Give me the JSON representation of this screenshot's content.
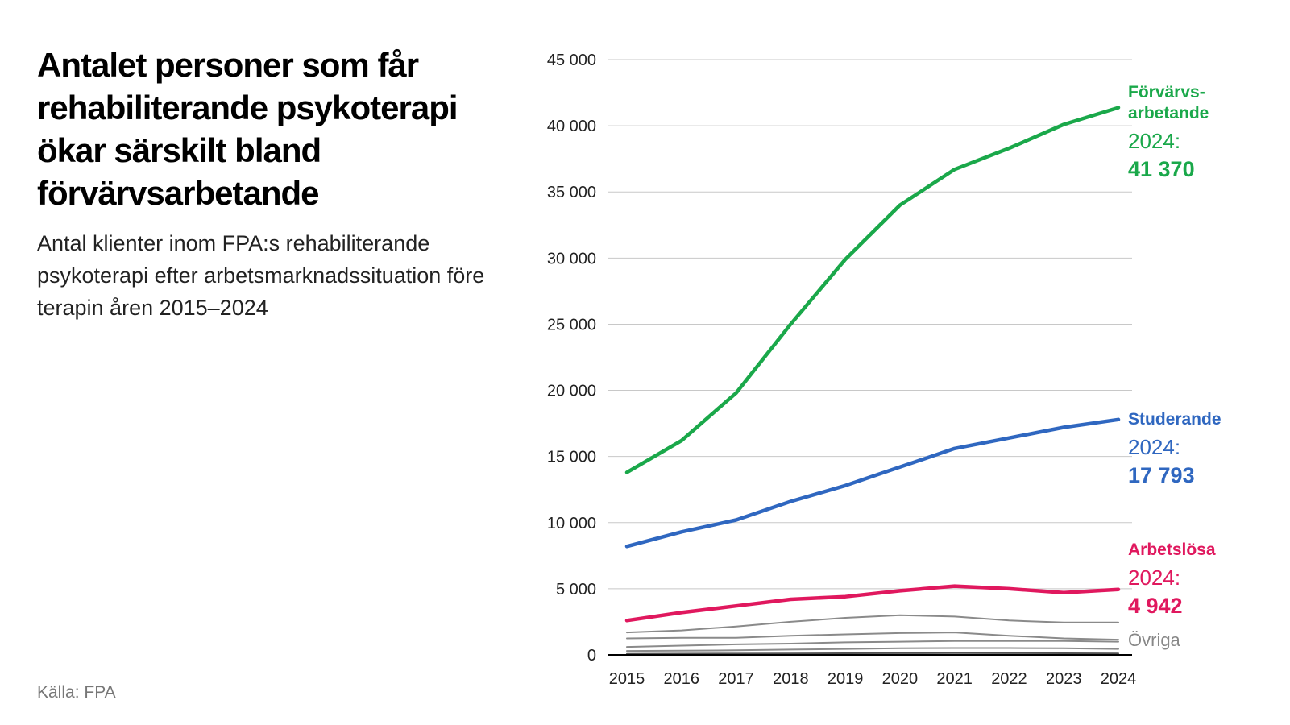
{
  "header": {
    "title": "Antalet personer som får rehabiliterande psykoterapi ökar särskilt bland förvärvsarbetande",
    "subtitle": "Antal klienter inom FPA:s rehabiliterande psykoterapi efter arbetsmarknadssituation före terapin åren 2015–2024"
  },
  "footer": {
    "source": "Källa: FPA"
  },
  "chart_data": {
    "type": "line",
    "title": "Antalet personer som får rehabiliterande psykoterapi ökar särskilt bland förvärvsarbetande",
    "subtitle": "Antal klienter inom FPA:s rehabiliterande psykoterapi efter arbetsmarknadssituation före terapin åren 2015–2024",
    "xlabel": "",
    "ylabel": "",
    "x": [
      "2015",
      "2016",
      "2017",
      "2018",
      "2019",
      "2020",
      "2021",
      "2022",
      "2023",
      "2024"
    ],
    "ylim": [
      0,
      45000
    ],
    "y_ticks": [
      0,
      5000,
      10000,
      15000,
      20000,
      25000,
      30000,
      35000,
      40000,
      45000
    ],
    "y_tick_labels": [
      "0",
      "5 000",
      "10 000",
      "15 000",
      "20 000",
      "25 000",
      "30 000",
      "35 000",
      "40 000",
      "45 000"
    ],
    "grid": true,
    "series": [
      {
        "name": "Förvärvsarbetande",
        "label_lines": [
          "Förvärvs-",
          "arbetande"
        ],
        "color": "#1aa84a",
        "highlight": true,
        "values": [
          13800,
          16200,
          19800,
          25000,
          29900,
          34000,
          36700,
          38300,
          40100,
          41370
        ],
        "end_label_year": "2024:",
        "end_label_value": "41 370"
      },
      {
        "name": "Studerande",
        "label_lines": [
          "Studerande"
        ],
        "color": "#2f67c0",
        "highlight": true,
        "values": [
          8200,
          9300,
          10200,
          11600,
          12800,
          14200,
          15600,
          16400,
          17200,
          17793
        ],
        "end_label_year": "2024:",
        "end_label_value": "17 793"
      },
      {
        "name": "Arbetslösa",
        "label_lines": [
          "Arbetslösa"
        ],
        "color": "#e0185e",
        "highlight": true,
        "values": [
          2600,
          3200,
          3700,
          4200,
          4400,
          4850,
          5200,
          5000,
          4700,
          4942
        ],
        "end_label_year": "2024:",
        "end_label_value": "4 942"
      },
      {
        "name": "Övriga 1",
        "color": "#8a8a8a",
        "highlight": false,
        "values": [
          1700,
          1850,
          2150,
          2500,
          2800,
          3000,
          2900,
          2600,
          2450,
          2450
        ]
      },
      {
        "name": "Övriga 2",
        "color": "#8a8a8a",
        "highlight": false,
        "values": [
          1250,
          1300,
          1300,
          1450,
          1550,
          1650,
          1700,
          1450,
          1250,
          1150
        ]
      },
      {
        "name": "Övriga 3",
        "color": "#8a8a8a",
        "highlight": false,
        "values": [
          600,
          700,
          800,
          850,
          950,
          1000,
          1050,
          1050,
          1050,
          1000
        ]
      },
      {
        "name": "Övriga 4",
        "color": "#8a8a8a",
        "highlight": false,
        "values": [
          300,
          320,
          350,
          400,
          450,
          500,
          520,
          520,
          500,
          450
        ]
      },
      {
        "name": "Övriga 5",
        "color": "#555555",
        "highlight": false,
        "values": [
          80,
          90,
          100,
          110,
          120,
          130,
          140,
          130,
          120,
          110
        ]
      }
    ],
    "other_label": "Övriga"
  }
}
